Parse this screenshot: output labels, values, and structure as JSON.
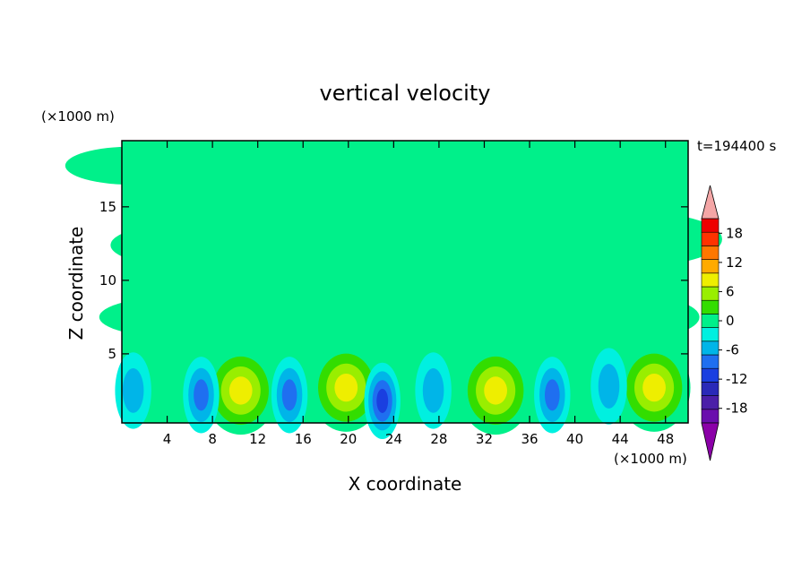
{
  "chart_data": {
    "type": "heatmap",
    "title": "vertical velocity",
    "xlabel": "X coordinate",
    "ylabel": "Z coordinate",
    "x_unit": "(×1000 m)",
    "y_unit": "(×1000 m)",
    "time_label": "t=194400 s",
    "xlim": [
      0,
      50
    ],
    "ylim": [
      0.3,
      19.5
    ],
    "x_ticks": [
      4,
      8,
      12,
      16,
      20,
      24,
      28,
      32,
      36,
      40,
      44,
      48
    ],
    "y_ticks": [
      5,
      10,
      15
    ],
    "grid": false,
    "colorbar": {
      "levels": [
        -21,
        -18,
        -15,
        -12,
        -9,
        -6,
        -3,
        0,
        3,
        6,
        9,
        12,
        15,
        18,
        21
      ],
      "tick_labels": [
        "18",
        "12",
        "6",
        "0",
        "-6",
        "-12",
        "-18"
      ],
      "tick_values": [
        18,
        12,
        6,
        0,
        -6,
        -12,
        -18
      ],
      "colors": [
        "#6a0dad",
        "#4b1fa8",
        "#2a2ab8",
        "#1a3fe0",
        "#1f6ff0",
        "#00b5e8",
        "#00f0e0",
        "#00f08a",
        "#33dd00",
        "#99ee00",
        "#eeee00",
        "#ffaa00",
        "#ff7700",
        "#ff3300",
        "#ee0000"
      ],
      "under_color": "#8b00a8",
      "over_color": "#f4a6a6"
    },
    "features": [
      {
        "x": 10.5,
        "z": 2.5,
        "w": 10.0
      },
      {
        "x": 19.8,
        "z": 2.7,
        "w": 9.0
      },
      {
        "x": 33.0,
        "z": 2.5,
        "w": 10.0
      },
      {
        "x": 47.0,
        "z": 2.7,
        "w": 10.0
      },
      {
        "x": 1.0,
        "z": 2.5,
        "w": -5.0
      },
      {
        "x": 7.0,
        "z": 2.2,
        "w": -6.0
      },
      {
        "x": 14.8,
        "z": 2.2,
        "w": -6.0
      },
      {
        "x": 23.0,
        "z": 1.8,
        "w": -10.0
      },
      {
        "x": 27.5,
        "z": 2.5,
        "w": -4.0
      },
      {
        "x": 38.0,
        "z": 2.2,
        "w": -6.0
      },
      {
        "x": 43.0,
        "z": 2.8,
        "w": -4.0
      }
    ]
  }
}
